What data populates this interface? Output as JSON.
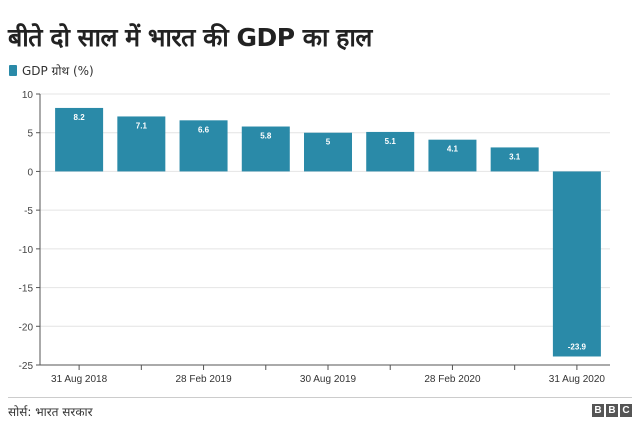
{
  "title": "बीते दो साल में भारत की GDP का हाल",
  "source": "सोर्स: भारत सरकार",
  "logo": "BBC",
  "chart_data": {
    "type": "bar",
    "title": "बीते दो साल में भारत की GDP का हाल",
    "categories": [
      "31 Aug 2018",
      "",
      "28 Feb 2019",
      "",
      "30 Aug 2019",
      "",
      "28 Feb 2020",
      "",
      "31 Aug 2020"
    ],
    "series": [
      {
        "name": "GDP ग्रोथ (%)",
        "values": [
          8.2,
          7.1,
          6.6,
          5.8,
          5,
          5.1,
          4.1,
          3.1,
          -23.9
        ],
        "color": "#2a8aa8"
      }
    ],
    "data_labels": [
      "8.2",
      "7.1",
      "6.6",
      "5.8",
      "5",
      "5.1",
      "4.1",
      "3.1",
      "-23.9"
    ],
    "yticks": [
      10,
      5,
      0,
      -5,
      -10,
      -15,
      -20,
      -25
    ],
    "ylim": [
      -25,
      10
    ],
    "xlabel": "",
    "ylabel": "",
    "grid": true,
    "legend": "top-left"
  }
}
